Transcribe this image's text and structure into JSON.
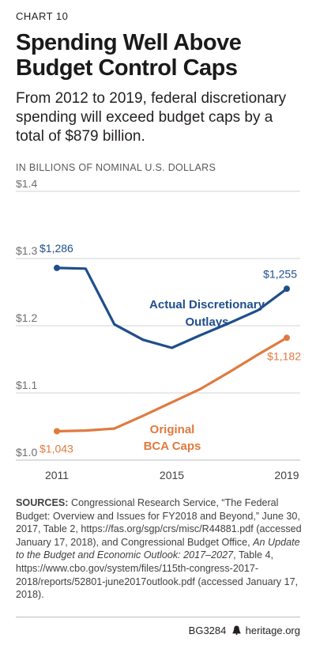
{
  "kicker": "CHART 10",
  "title": "Spending Well Above Budget Control Caps",
  "subtitle": "From 2012 to 2019, federal discretionary spending will exceed budget caps by a total of $879 billion.",
  "units": "IN BILLIONS OF NOMINAL U.S. DOLLARS",
  "chart_data": {
    "type": "line",
    "x": [
      2011,
      2012,
      2013,
      2014,
      2015,
      2016,
      2017,
      2018,
      2019
    ],
    "xticks": [
      "2011",
      "2015",
      "2019"
    ],
    "yticks": [
      "$1.4",
      "$1.3",
      "$1.2",
      "$1.1",
      "$1.0"
    ],
    "ylim": [
      1.0,
      1.4
    ],
    "grid": true,
    "series": [
      {
        "name": "Actual Discretionary Outlays",
        "color": "#1f4e8c",
        "values": [
          1.286,
          1.285,
          1.202,
          1.179,
          1.167,
          1.186,
          1.204,
          1.223,
          1.255
        ],
        "labels": [
          {
            "index": 0,
            "text": "$1,286"
          },
          {
            "index": 8,
            "text": "$1,255"
          }
        ]
      },
      {
        "name": "Original BCA Caps",
        "color": "#e07a3f",
        "values": [
          1.043,
          1.044,
          1.047,
          1.066,
          1.086,
          1.106,
          1.131,
          1.157,
          1.182
        ],
        "labels": [
          {
            "index": 0,
            "text": "$1,043"
          },
          {
            "index": 8,
            "text": "$1,182"
          }
        ]
      }
    ],
    "series_label_lines": {
      "blue": [
        "Actual Discretionary",
        "Outlays"
      ],
      "orange": [
        "Original",
        "BCA Caps"
      ]
    }
  },
  "sources": {
    "label": "SOURCES:",
    "part1": " Congressional Research Service, “The Federal Budget: Overview and Issues for FY2018 and Beyond,” June 30, 2017, Table 2, https://fas.org/sgp/crs/misc/R44881.pdf (accessed January 17, 2018), and Congressional Budget Office, ",
    "italic": "An Update to the Budget and Economic Outlook: 2017–2027",
    "part2": ", Table 4, https://www.cbo.gov/system/files/115th-congress-2017-2018/reports/52801-june2017outlook.pdf (accessed January 17, 2018)."
  },
  "footer": {
    "code": "BG3284",
    "icon": "liberty-bell-icon",
    "site": "heritage.org"
  }
}
